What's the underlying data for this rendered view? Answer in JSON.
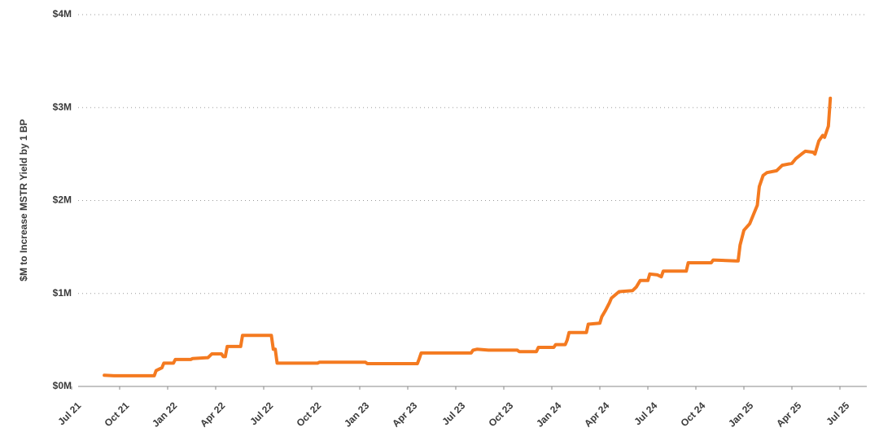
{
  "chart_data": {
    "type": "line",
    "y_label": "$M to Increase MSTR Yield by 1 BP",
    "x": [
      2021.67,
      2021.72,
      2021.93,
      2021.94,
      2021.97,
      2021.98,
      2022.03,
      2022.04,
      2022.12,
      2022.13,
      2022.21,
      2022.23,
      2022.28,
      2022.29,
      2022.3,
      2022.31,
      2022.38,
      2022.39,
      2022.54,
      2022.55,
      2022.56,
      2022.57,
      2022.78,
      2022.79,
      2023.03,
      2023.04,
      2023.3,
      2023.31,
      2023.32,
      2023.58,
      2023.59,
      2023.61,
      2023.67,
      2023.82,
      2023.83,
      2023.92,
      2023.93,
      2024.01,
      2024.02,
      2024.07,
      2024.08,
      2024.09,
      2024.18,
      2024.19,
      2024.25,
      2024.26,
      2024.28,
      2024.3,
      2024.31,
      2024.35,
      2024.42,
      2024.44,
      2024.46,
      2024.5,
      2024.51,
      2024.55,
      2024.57,
      2024.58,
      2024.7,
      2024.71,
      2024.83,
      2024.84,
      2024.96,
      2024.97,
      2024.98,
      2025.0,
      2025.03,
      2025.05,
      2025.07,
      2025.08,
      2025.1,
      2025.12,
      2025.17,
      2025.2,
      2025.25,
      2025.27,
      2025.3,
      2025.32,
      2025.36,
      2025.37,
      2025.39,
      2025.41,
      2025.42,
      2025.44,
      2025.45
    ],
    "series": [
      {
        "name": "MSTR",
        "color": "#f47a20",
        "values": [
          120000,
          115000,
          115000,
          170000,
          200000,
          250000,
          250000,
          290000,
          290000,
          300000,
          310000,
          350000,
          350000,
          320000,
          320000,
          430000,
          430000,
          550000,
          550000,
          400000,
          400000,
          250000,
          250000,
          260000,
          260000,
          245000,
          245000,
          300000,
          360000,
          360000,
          390000,
          400000,
          390000,
          390000,
          375000,
          375000,
          420000,
          420000,
          450000,
          450000,
          500000,
          580000,
          580000,
          670000,
          680000,
          750000,
          820000,
          900000,
          950000,
          1020000,
          1030000,
          1070000,
          1140000,
          1140000,
          1210000,
          1200000,
          1180000,
          1240000,
          1240000,
          1330000,
          1330000,
          1360000,
          1350000,
          1350000,
          1520000,
          1680000,
          1750000,
          1850000,
          1950000,
          2150000,
          2270000,
          2300000,
          2320000,
          2380000,
          2400000,
          2450000,
          2500000,
          2530000,
          2520000,
          2500000,
          2640000,
          2700000,
          2680000,
          2800000,
          3100000
        ]
      }
    ],
    "xlim": [
      2021.5,
      2025.5
    ],
    "xticks": [
      {
        "value": 2021.5,
        "label": "Jul 21"
      },
      {
        "value": 2021.75,
        "label": "Oct 21"
      },
      {
        "value": 2022.0,
        "label": "Jan 22"
      },
      {
        "value": 2022.25,
        "label": "Apr 22"
      },
      {
        "value": 2022.5,
        "label": "Jul 22"
      },
      {
        "value": 2022.75,
        "label": "Oct 22"
      },
      {
        "value": 2023.0,
        "label": "Jan 23"
      },
      {
        "value": 2023.25,
        "label": "Apr 23"
      },
      {
        "value": 2023.5,
        "label": "Jul 23"
      },
      {
        "value": 2023.75,
        "label": "Oct 23"
      },
      {
        "value": 2024.0,
        "label": "Jan 24"
      },
      {
        "value": 2024.25,
        "label": "Apr 24"
      },
      {
        "value": 2024.5,
        "label": "Jul 24"
      },
      {
        "value": 2024.75,
        "label": "Oct 24"
      },
      {
        "value": 2025.0,
        "label": "Jan 25"
      },
      {
        "value": 2025.25,
        "label": "Apr 25"
      },
      {
        "value": 2025.5,
        "label": "Jul 25"
      }
    ],
    "ylim": [
      0,
      4000000
    ],
    "yticks": [
      {
        "value": 0,
        "label": "$0M"
      },
      {
        "value": 1000000,
        "label": "$1M"
      },
      {
        "value": 2000000,
        "label": "$2M"
      },
      {
        "value": 3000000,
        "label": "$3M"
      },
      {
        "value": 4000000,
        "label": "$4M"
      }
    ],
    "grid": true
  }
}
